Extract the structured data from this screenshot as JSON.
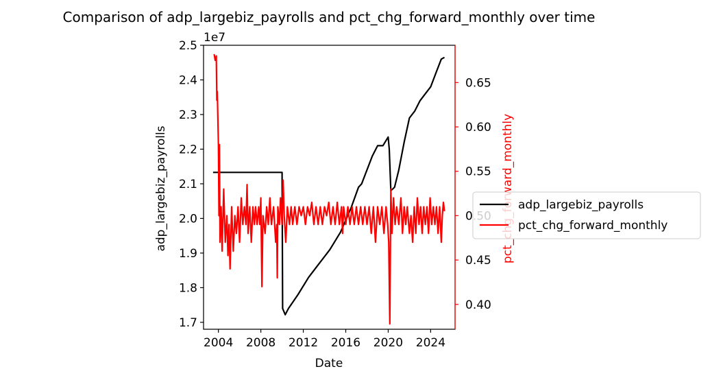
{
  "chart_data": {
    "type": "line",
    "title": "Comparison of adp_largebiz_payrolls and pct_chg_forward_monthly over time",
    "xlabel": "Date",
    "ylabel_left": "adp_largebiz_payrolls",
    "ylabel_right": "pct_chg_forward_monthly",
    "left_axis_multiplier": "1e7",
    "xlim": [
      2002.6,
      2026.3
    ],
    "ylim_left": [
      1.68,
      2.5
    ],
    "ylim_right": [
      0.372,
      0.692
    ],
    "xticks": [
      2004,
      2008,
      2012,
      2016,
      2020,
      2024
    ],
    "yticks_left": [
      "1.7",
      "1.8",
      "1.9",
      "2.0",
      "2.1",
      "2.2",
      "2.3",
      "2.4",
      "2.5"
    ],
    "yticks_right": [
      "0.40",
      "0.45",
      "0.50",
      "0.55",
      "0.60",
      "0.65"
    ],
    "legend_position": "right, outside plot",
    "colors": {
      "adp_largebiz_payrolls": "#000000",
      "pct_chg_forward_monthly": "#ff0000"
    },
    "series": [
      {
        "name": "adp_largebiz_payrolls",
        "axis": "left",
        "color": "#000000",
        "points": [
          [
            2003.5,
            2.133
          ],
          [
            2010.0,
            2.133
          ],
          [
            2010.05,
            1.74
          ],
          [
            2010.3,
            1.722
          ],
          [
            2010.6,
            1.74
          ],
          [
            2011.5,
            1.78
          ],
          [
            2012.5,
            1.83
          ],
          [
            2013.5,
            1.87
          ],
          [
            2014.5,
            1.91
          ],
          [
            2015.5,
            1.96
          ],
          [
            2016.5,
            2.03
          ],
          [
            2017.2,
            2.09
          ],
          [
            2017.5,
            2.1
          ],
          [
            2018.5,
            2.18
          ],
          [
            2019.0,
            2.21
          ],
          [
            2019.5,
            2.21
          ],
          [
            2020.0,
            2.235
          ],
          [
            2020.1,
            2.2
          ],
          [
            2020.25,
            2.08
          ],
          [
            2020.6,
            2.09
          ],
          [
            2021.0,
            2.14
          ],
          [
            2021.5,
            2.22
          ],
          [
            2022.0,
            2.29
          ],
          [
            2022.5,
            2.31
          ],
          [
            2023.0,
            2.34
          ],
          [
            2023.5,
            2.36
          ],
          [
            2024.0,
            2.38
          ],
          [
            2024.5,
            2.42
          ],
          [
            2025.0,
            2.46
          ],
          [
            2025.3,
            2.465
          ]
        ]
      },
      {
        "name": "pct_chg_forward_monthly",
        "axis": "right",
        "color": "#ff0000",
        "points": [
          [
            2003.6,
            0.682
          ],
          [
            2003.7,
            0.675
          ],
          [
            2003.8,
            0.68
          ],
          [
            2003.85,
            0.63
          ],
          [
            2003.9,
            0.64
          ],
          [
            2004.0,
            0.58
          ],
          [
            2004.05,
            0.5
          ],
          [
            2004.1,
            0.58
          ],
          [
            2004.15,
            0.47
          ],
          [
            2004.25,
            0.51
          ],
          [
            2004.35,
            0.46
          ],
          [
            2004.5,
            0.53
          ],
          [
            2004.65,
            0.47
          ],
          [
            2004.8,
            0.5
          ],
          [
            2004.9,
            0.455
          ],
          [
            2005.0,
            0.49
          ],
          [
            2005.1,
            0.44
          ],
          [
            2005.25,
            0.51
          ],
          [
            2005.4,
            0.46
          ],
          [
            2005.55,
            0.5
          ],
          [
            2005.7,
            0.48
          ],
          [
            2005.85,
            0.51
          ],
          [
            2006.0,
            0.47
          ],
          [
            2006.15,
            0.52
          ],
          [
            2006.3,
            0.49
          ],
          [
            2006.45,
            0.51
          ],
          [
            2006.6,
            0.49
          ],
          [
            2006.7,
            0.535
          ],
          [
            2006.8,
            0.48
          ],
          [
            2006.95,
            0.51
          ],
          [
            2007.1,
            0.47
          ],
          [
            2007.25,
            0.51
          ],
          [
            2007.4,
            0.49
          ],
          [
            2007.5,
            0.51
          ],
          [
            2007.65,
            0.49
          ],
          [
            2007.8,
            0.51
          ],
          [
            2007.9,
            0.49
          ],
          [
            2008.0,
            0.52
          ],
          [
            2008.1,
            0.42
          ],
          [
            2008.2,
            0.5
          ],
          [
            2008.4,
            0.48
          ],
          [
            2008.55,
            0.51
          ],
          [
            2008.7,
            0.49
          ],
          [
            2008.85,
            0.52
          ],
          [
            2009.0,
            0.49
          ],
          [
            2009.2,
            0.51
          ],
          [
            2009.4,
            0.47
          ],
          [
            2009.5,
            0.49
          ],
          [
            2009.55,
            0.43
          ],
          [
            2009.6,
            0.51
          ],
          [
            2009.75,
            0.49
          ],
          [
            2009.85,
            0.52
          ],
          [
            2010.0,
            0.49
          ],
          [
            2010.1,
            0.54
          ],
          [
            2010.2,
            0.5
          ],
          [
            2010.35,
            0.47
          ],
          [
            2010.5,
            0.51
          ],
          [
            2010.7,
            0.49
          ],
          [
            2010.85,
            0.51
          ],
          [
            2011.0,
            0.49
          ],
          [
            2011.2,
            0.51
          ],
          [
            2011.4,
            0.49
          ],
          [
            2011.6,
            0.51
          ],
          [
            2011.8,
            0.5
          ],
          [
            2012.0,
            0.51
          ],
          [
            2012.2,
            0.49
          ],
          [
            2012.4,
            0.51
          ],
          [
            2012.6,
            0.5
          ],
          [
            2012.8,
            0.515
          ],
          [
            2013.0,
            0.49
          ],
          [
            2013.2,
            0.51
          ],
          [
            2013.4,
            0.49
          ],
          [
            2013.6,
            0.51
          ],
          [
            2013.8,
            0.49
          ],
          [
            2014.0,
            0.51
          ],
          [
            2014.2,
            0.5
          ],
          [
            2014.4,
            0.515
          ],
          [
            2014.6,
            0.49
          ],
          [
            2014.8,
            0.51
          ],
          [
            2015.0,
            0.49
          ],
          [
            2015.2,
            0.515
          ],
          [
            2015.4,
            0.49
          ],
          [
            2015.6,
            0.51
          ],
          [
            2015.7,
            0.48
          ],
          [
            2015.8,
            0.51
          ],
          [
            2016.0,
            0.49
          ],
          [
            2016.2,
            0.51
          ],
          [
            2016.4,
            0.49
          ],
          [
            2016.6,
            0.51
          ],
          [
            2016.8,
            0.49
          ],
          [
            2017.0,
            0.51
          ],
          [
            2017.2,
            0.49
          ],
          [
            2017.4,
            0.51
          ],
          [
            2017.6,
            0.49
          ],
          [
            2017.8,
            0.51
          ],
          [
            2018.0,
            0.49
          ],
          [
            2018.2,
            0.51
          ],
          [
            2018.4,
            0.48
          ],
          [
            2018.6,
            0.51
          ],
          [
            2018.8,
            0.47
          ],
          [
            2019.0,
            0.51
          ],
          [
            2019.2,
            0.49
          ],
          [
            2019.4,
            0.51
          ],
          [
            2019.6,
            0.48
          ],
          [
            2019.8,
            0.51
          ],
          [
            2019.95,
            0.49
          ],
          [
            2020.05,
            0.47
          ],
          [
            2020.15,
            0.378
          ],
          [
            2020.25,
            0.53
          ],
          [
            2020.35,
            0.48
          ],
          [
            2020.5,
            0.52
          ],
          [
            2020.65,
            0.49
          ],
          [
            2020.8,
            0.51
          ],
          [
            2021.0,
            0.49
          ],
          [
            2021.2,
            0.52
          ],
          [
            2021.35,
            0.48
          ],
          [
            2021.5,
            0.51
          ],
          [
            2021.65,
            0.49
          ],
          [
            2021.8,
            0.51
          ],
          [
            2022.0,
            0.48
          ],
          [
            2022.15,
            0.5
          ],
          [
            2022.3,
            0.47
          ],
          [
            2022.45,
            0.51
          ],
          [
            2022.6,
            0.48
          ],
          [
            2022.75,
            0.52
          ],
          [
            2022.9,
            0.49
          ],
          [
            2023.05,
            0.51
          ],
          [
            2023.2,
            0.48
          ],
          [
            2023.35,
            0.51
          ],
          [
            2023.5,
            0.49
          ],
          [
            2023.65,
            0.51
          ],
          [
            2023.8,
            0.48
          ],
          [
            2023.95,
            0.52
          ],
          [
            2024.1,
            0.49
          ],
          [
            2024.25,
            0.51
          ],
          [
            2024.4,
            0.49
          ],
          [
            2024.55,
            0.51
          ],
          [
            2024.7,
            0.48
          ],
          [
            2024.85,
            0.51
          ],
          [
            2025.0,
            0.47
          ],
          [
            2025.1,
            0.5
          ],
          [
            2025.2,
            0.515
          ],
          [
            2025.3,
            0.505
          ]
        ]
      }
    ]
  }
}
